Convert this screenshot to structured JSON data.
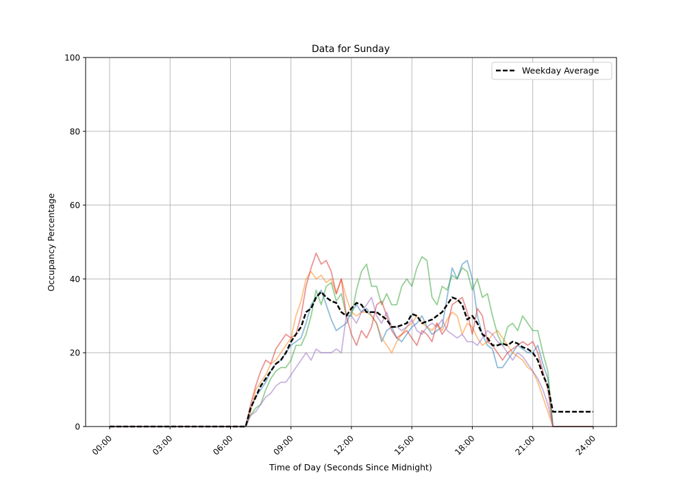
{
  "chart_data": {
    "type": "line",
    "title": "Data for Sunday",
    "xlabel": "Time of Day (Seconds Since Midnight)",
    "ylabel": "Occupancy Percentage",
    "ylim": [
      0,
      100
    ],
    "xlim": [
      "-01:12",
      "25:12"
    ],
    "yticks": [
      "0",
      "20",
      "40",
      "60",
      "80",
      "100"
    ],
    "xticks": [
      "00:00",
      "03:00",
      "06:00",
      "09:00",
      "12:00",
      "15:00",
      "18:00",
      "21:00",
      "24:00"
    ],
    "grid": true,
    "legend": {
      "position": "top-right",
      "entries": [
        "Weekday Average"
      ]
    },
    "x": [
      "00:00",
      "06:45",
      "07:00",
      "07:15",
      "07:30",
      "07:45",
      "08:00",
      "08:15",
      "08:30",
      "08:45",
      "09:00",
      "09:15",
      "09:30",
      "09:45",
      "10:00",
      "10:15",
      "10:30",
      "10:45",
      "11:00",
      "11:15",
      "11:30",
      "11:45",
      "12:00",
      "12:15",
      "12:30",
      "12:45",
      "13:00",
      "13:15",
      "13:30",
      "13:45",
      "14:00",
      "14:15",
      "14:30",
      "14:45",
      "15:00",
      "15:15",
      "15:30",
      "15:45",
      "16:00",
      "16:15",
      "16:30",
      "16:45",
      "17:00",
      "17:15",
      "17:30",
      "17:45",
      "18:00",
      "18:15",
      "18:30",
      "18:45",
      "19:00",
      "19:15",
      "19:30",
      "19:45",
      "20:00",
      "20:15",
      "20:30",
      "20:45",
      "21:00",
      "21:15",
      "21:30",
      "21:45",
      "22:00",
      "24:00"
    ],
    "series": [
      {
        "color": "#1f77b4",
        "values": [
          0,
          0,
          5,
          8,
          10,
          12,
          15,
          17,
          18,
          20,
          22,
          23,
          24,
          28,
          33,
          35,
          37,
          33,
          29,
          26,
          27,
          28,
          31,
          33,
          31,
          32,
          30,
          28,
          23,
          26,
          27,
          24,
          23,
          25,
          27,
          28,
          30,
          27,
          25,
          26,
          27,
          35,
          43,
          40,
          44,
          45,
          40,
          30,
          25,
          22,
          21,
          16,
          16,
          18,
          20,
          22,
          21,
          20,
          20,
          22,
          17,
          13,
          0,
          0
        ]
      },
      {
        "color": "#ff7f0e",
        "values": [
          0,
          0,
          4,
          10,
          12,
          14,
          17,
          18,
          20,
          22,
          24,
          30,
          34,
          40,
          42,
          40,
          41,
          39,
          40,
          36,
          40,
          35,
          31,
          30,
          31,
          31,
          30,
          28,
          24,
          22,
          20,
          23,
          25,
          27,
          28,
          30,
          28,
          27,
          26,
          28,
          26,
          29,
          31,
          30,
          25,
          28,
          27,
          24,
          22,
          23,
          25,
          26,
          24,
          22,
          20,
          19,
          18,
          16,
          15,
          12,
          8,
          4,
          0,
          0
        ]
      },
      {
        "color": "#2ca02c",
        "values": [
          0,
          0,
          3,
          5,
          6,
          10,
          13,
          15,
          16,
          16,
          18,
          22,
          22,
          25,
          30,
          37,
          33,
          38,
          39,
          34,
          36,
          30,
          30,
          37,
          42,
          44,
          38,
          38,
          33,
          36,
          33,
          33,
          38,
          40,
          38,
          43,
          46,
          45,
          35,
          33,
          38,
          37,
          41,
          40,
          43,
          42,
          37,
          40,
          35,
          36,
          30,
          25,
          22,
          27,
          28,
          26,
          30,
          28,
          26,
          26,
          20,
          15,
          0,
          0
        ]
      },
      {
        "color": "#d62728",
        "values": [
          0,
          0,
          6,
          11,
          15,
          18,
          17,
          21,
          23,
          25,
          24,
          25,
          30,
          38,
          43,
          47,
          44,
          45,
          42,
          36,
          40,
          30,
          25,
          22,
          26,
          24,
          27,
          33,
          34,
          30,
          26,
          24,
          25,
          26,
          24,
          22,
          26,
          25,
          23,
          28,
          25,
          27,
          33,
          34,
          35,
          31,
          25,
          32,
          30,
          23,
          22,
          20,
          18,
          20,
          21,
          22,
          23,
          22,
          23,
          20,
          15,
          10,
          0,
          0
        ]
      },
      {
        "color": "#9467bd",
        "values": [
          0,
          0,
          3,
          4,
          6,
          8,
          9,
          11,
          12,
          12,
          14,
          16,
          18,
          20,
          18,
          21,
          20,
          20,
          20,
          21,
          20,
          30,
          30,
          28,
          31,
          33,
          35,
          30,
          28,
          31,
          27,
          27,
          26,
          27,
          29,
          26,
          25,
          27,
          28,
          27,
          29,
          26,
          25,
          24,
          25,
          23,
          23,
          22,
          24,
          26,
          25,
          23,
          22,
          20,
          18,
          20,
          19,
          17,
          15,
          13,
          10,
          6,
          0,
          0
        ]
      },
      {
        "name": "Weekday Average",
        "color": "#000000",
        "dashed": true,
        "values": [
          0,
          0,
          5,
          8,
          11,
          13,
          15,
          17,
          18,
          20,
          23,
          25,
          27,
          31,
          32,
          35,
          36.5,
          35,
          34,
          33.5,
          31,
          30,
          32,
          33.5,
          33,
          31,
          31,
          31,
          30,
          29,
          27,
          27,
          27.5,
          28,
          30.5,
          30,
          28,
          28.5,
          29,
          30,
          31,
          33,
          35,
          34.5,
          33,
          29,
          30,
          28,
          25,
          24,
          22,
          22,
          22.5,
          22,
          23,
          22.5,
          21.5,
          21,
          20,
          18,
          14,
          11,
          4,
          4
        ]
      }
    ]
  }
}
